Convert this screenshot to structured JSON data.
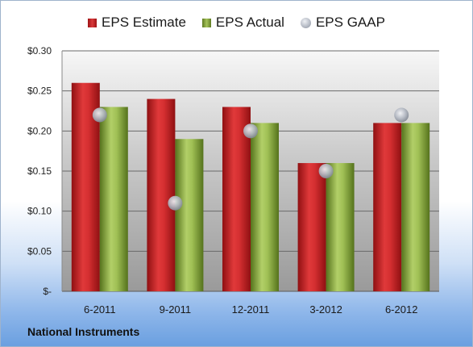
{
  "chart_data": {
    "type": "bar",
    "categories": [
      "6-2011",
      "9-2011",
      "12-2011",
      "3-2012",
      "6-2012"
    ],
    "series": [
      {
        "name": "EPS Estimate",
        "kind": "bar",
        "color": "#c81e20",
        "values": [
          0.26,
          0.24,
          0.23,
          0.16,
          0.21
        ]
      },
      {
        "name": "EPS Actual",
        "kind": "bar",
        "color": "#8fb043",
        "values": [
          0.23,
          0.19,
          0.21,
          0.16,
          0.21
        ]
      },
      {
        "name": "EPS GAAP",
        "kind": "marker",
        "color": "#a9aeb8",
        "values": [
          0.22,
          0.11,
          0.2,
          0.15,
          0.22
        ]
      }
    ],
    "ylim": [
      0,
      0.3
    ],
    "yticks": [
      0,
      0.05,
      0.1,
      0.15,
      0.2,
      0.25,
      0.3
    ],
    "ytick_labels": [
      "$-",
      "$0.05",
      "$0.10",
      "$0.15",
      "$0.20",
      "$0.25",
      "$0.30"
    ],
    "grid": true,
    "legend_position": "top-center"
  },
  "footer_text": "National Instruments"
}
